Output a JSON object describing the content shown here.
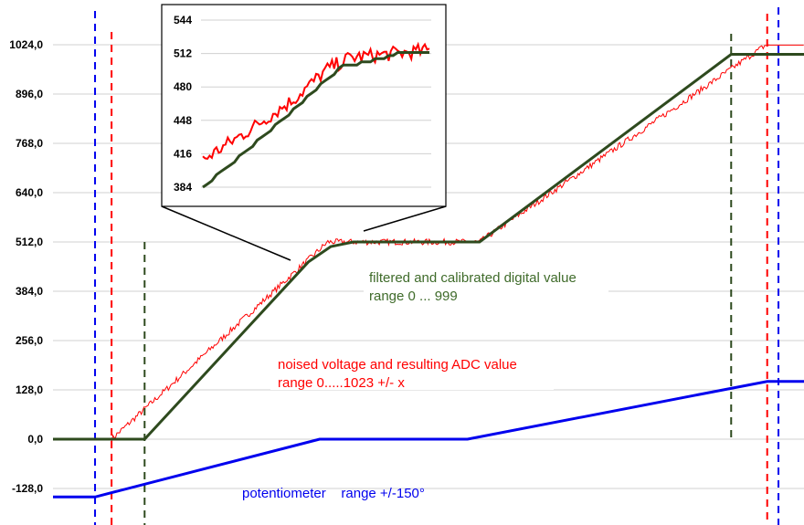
{
  "chart_data": {
    "type": "line",
    "ylim": [
      -150,
      1024
    ],
    "yticks": [
      "1024,0",
      "896,0",
      "768,0",
      "640,0",
      "512,0",
      "384,0",
      "256,0",
      "128,0",
      "0,0",
      "-128,0"
    ],
    "ytick_values": [
      1024,
      896,
      768,
      640,
      512,
      384,
      256,
      128,
      0,
      -128
    ],
    "grid": true,
    "xlim": [
      0,
      100
    ],
    "colors": {
      "potentiometer": "#0000ee",
      "adc": "#ff0000",
      "filtered": "#2e4a1e",
      "grid": "#d0d0d0"
    },
    "series": [
      {
        "key": "potentiometer",
        "points": [
          [
            0,
            -150
          ],
          [
            5.6,
            -150
          ],
          [
            35.5,
            0
          ],
          [
            55.2,
            0
          ],
          [
            95.1,
            150
          ],
          [
            100,
            150
          ]
        ]
      },
      {
        "key": "adc",
        "noisy": true,
        "points": [
          [
            0,
            0
          ],
          [
            7.8,
            0
          ],
          [
            36.6,
            512
          ],
          [
            56.8,
            512
          ],
          [
            94.9,
            1023
          ],
          [
            100,
            1023
          ]
        ]
      },
      {
        "key": "filtered",
        "points": [
          [
            0,
            0
          ],
          [
            12.2,
            0
          ],
          [
            34,
            460
          ],
          [
            37,
            500
          ],
          [
            40,
            512
          ],
          [
            56.8,
            512
          ],
          [
            90.3,
            999
          ],
          [
            100,
            999
          ]
        ]
      }
    ],
    "markers": [
      {
        "key": "potentiometer",
        "x": [
          5.6,
          96.6
        ]
      },
      {
        "key": "adc",
        "x": [
          7.8,
          95.1
        ]
      },
      {
        "key": "filtered",
        "x": [
          12.2,
          90.3
        ]
      }
    ],
    "annotations": {
      "filtered": [
        "filtered and calibrated digital value",
        "range 0 ... 999"
      ],
      "adc": [
        "noised voltage and resulting ADC value",
        "range 0.....1023 +/- x"
      ],
      "potentiometer": "potentiometer    range +/-150°"
    },
    "inset": {
      "ylim": [
        384,
        544
      ],
      "yticks": [
        "544",
        "512",
        "480",
        "448",
        "416",
        "384"
      ],
      "ytick_values": [
        544,
        512,
        480,
        448,
        416,
        384
      ],
      "series": [
        {
          "key": "adc",
          "noisy": true,
          "points": [
            [
              0,
              410
            ],
            [
              20,
              438
            ],
            [
              40,
              468
            ],
            [
              55,
              497
            ],
            [
              65,
              508
            ],
            [
              100,
              515
            ]
          ]
        },
        {
          "key": "filtered",
          "points": [
            [
              0,
              384
            ],
            [
              20,
              420
            ],
            [
              40,
              458
            ],
            [
              55,
              488
            ],
            [
              62,
              500
            ],
            [
              75,
              505
            ],
            [
              80,
              508
            ],
            [
              85,
              512
            ],
            [
              100,
              512
            ]
          ]
        }
      ]
    }
  }
}
